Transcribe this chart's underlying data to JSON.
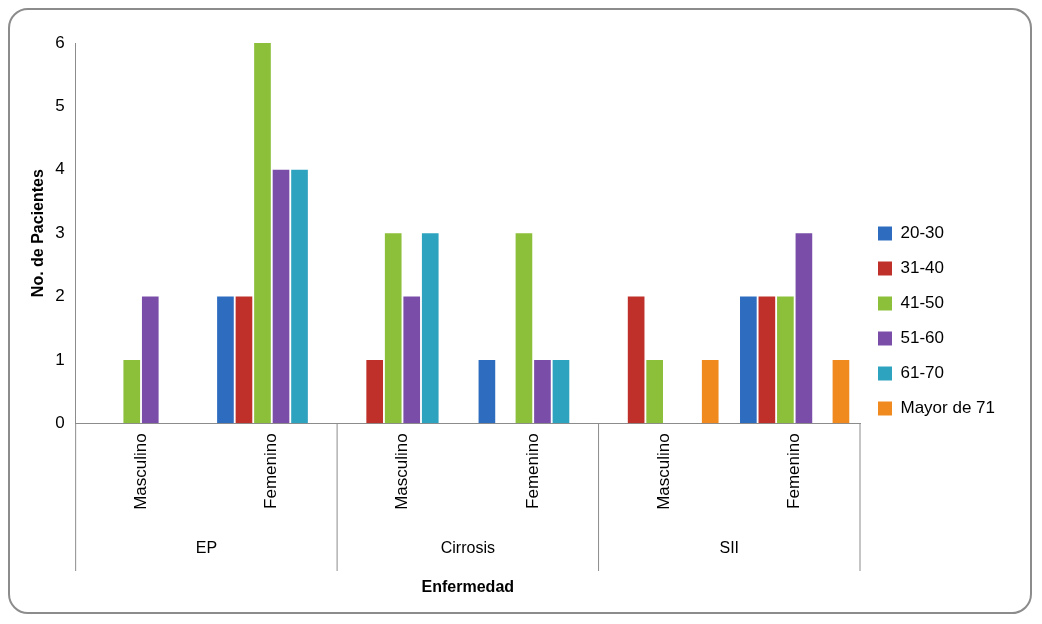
{
  "chart_data": {
    "type": "bar",
    "xlabel": "Enfermedad",
    "ylabel": "No. de Pacientes",
    "categories": [
      "Masculino",
      "Femenino",
      "Masculino",
      "Femenino",
      "Masculino",
      "Femenino"
    ],
    "annotations": [
      "EP",
      "Cirrosis",
      "SII"
    ],
    "series": [
      {
        "name": "20-30",
        "color": "#2e6cc0",
        "values": [
          0,
          2,
          0,
          1,
          0,
          2
        ]
      },
      {
        "name": "31-40",
        "color": "#c0302b",
        "values": [
          0,
          2,
          1,
          0,
          2,
          2
        ]
      },
      {
        "name": "41-50",
        "color": "#8cbf3a",
        "values": [
          1,
          6,
          3,
          3,
          1,
          2
        ]
      },
      {
        "name": "51-60",
        "color": "#7a4ea8",
        "values": [
          2,
          4,
          2,
          1,
          0,
          3
        ]
      },
      {
        "name": "61-70",
        "color": "#2ea3bf",
        "values": [
          0,
          4,
          3,
          1,
          0,
          0
        ]
      },
      {
        "name": "Mayor de 71",
        "color": "#f08a1e",
        "values": [
          0,
          0,
          0,
          0,
          1,
          1
        ]
      }
    ],
    "ylim": [
      0,
      6
    ],
    "yticks": [
      0,
      1,
      2,
      3,
      4,
      5,
      6
    ],
    "grid": false,
    "legend": "right"
  }
}
